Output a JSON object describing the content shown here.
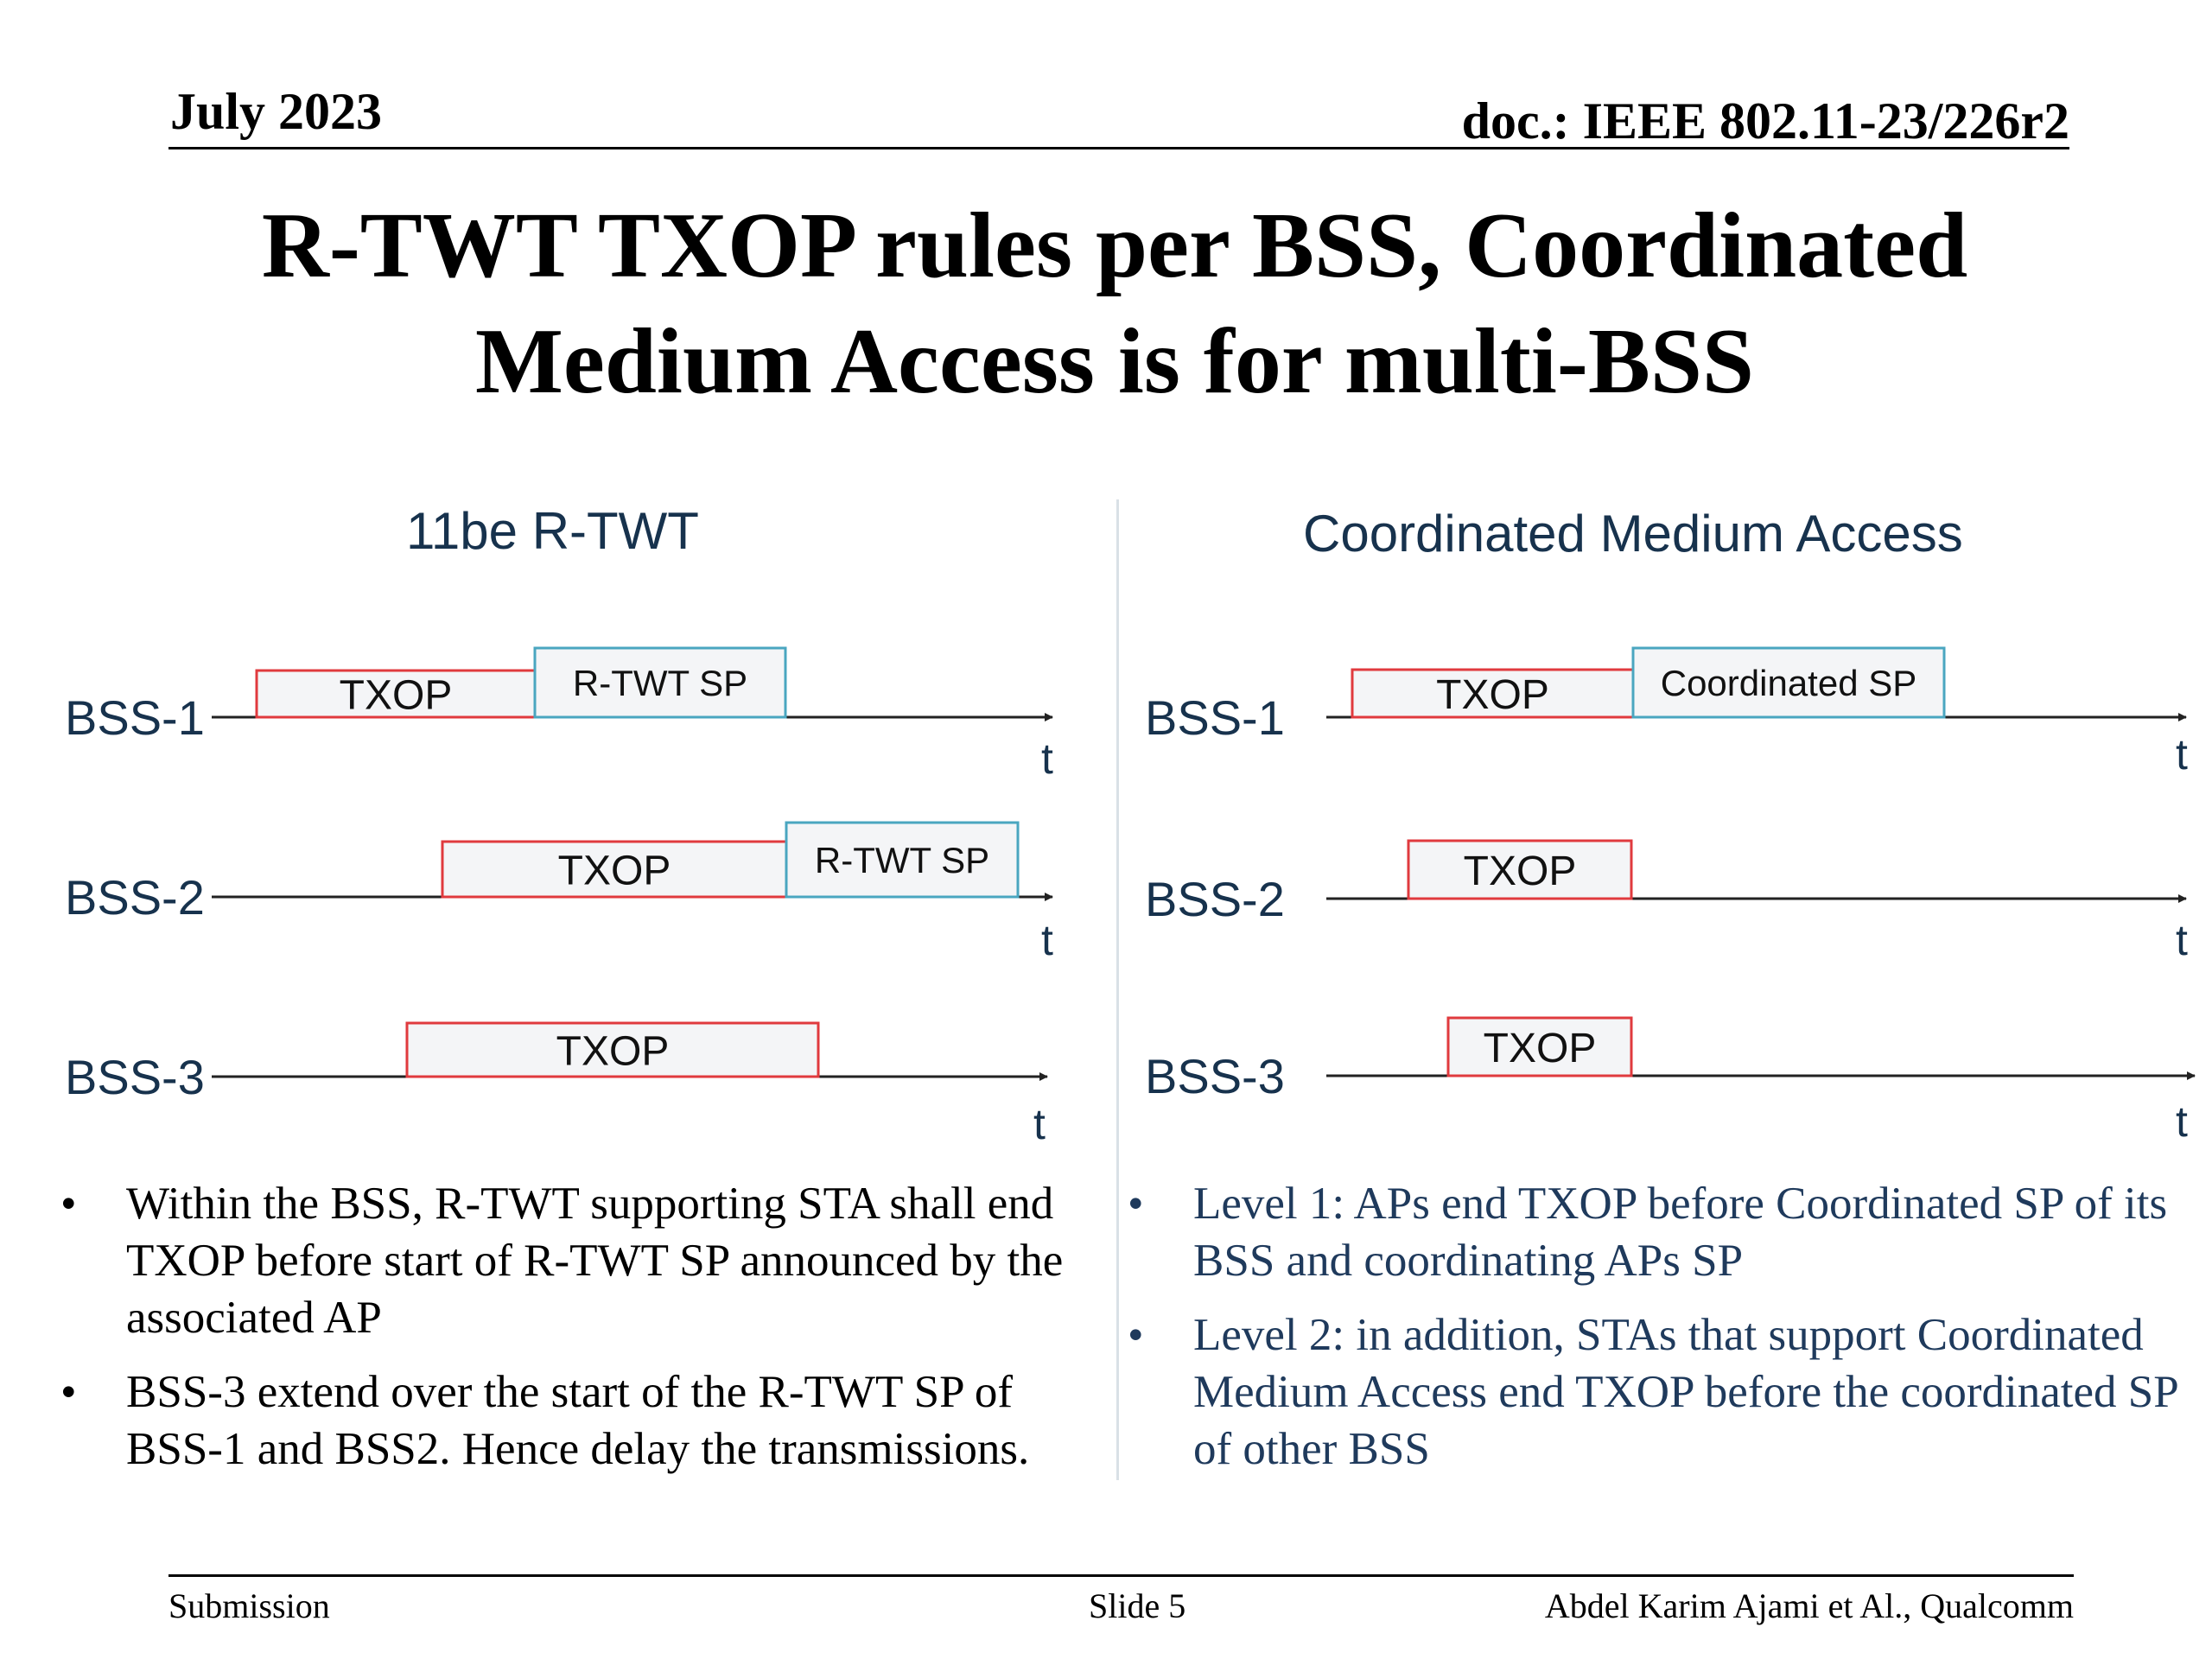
{
  "header": {
    "date": "July 2023",
    "doc": "doc.: IEEE 802.11-23/226r2"
  },
  "title": {
    "line1": "R-TWT TXOP rules per BSS, Coordinated",
    "line2": "Medium Access is for multi-BSS"
  },
  "left_panel": {
    "title": "11be R-TWT",
    "rows": [
      {
        "label": "BSS-1",
        "axis_label": "t",
        "blocks": [
          {
            "text": "TXOP",
            "kind": "txop"
          },
          {
            "text": "R-TWT SP",
            "kind": "sp"
          }
        ]
      },
      {
        "label": "BSS-2",
        "axis_label": "t",
        "blocks": [
          {
            "text": "TXOP",
            "kind": "txop"
          },
          {
            "text": "R-TWT SP",
            "kind": "sp"
          }
        ]
      },
      {
        "label": "BSS-3",
        "axis_label": "t",
        "blocks": [
          {
            "text": "TXOP",
            "kind": "txop"
          }
        ]
      }
    ],
    "bullets": [
      "Within the BSS, R-TWT supporting STA shall end TXOP before start of R-TWT SP announced by the associated AP",
      "BSS-3 extend over the start of the R-TWT SP of BSS-1 and BSS2. Hence delay the transmissions."
    ]
  },
  "right_panel": {
    "title": "Coordinated Medium Access",
    "rows": [
      {
        "label": "BSS-1",
        "axis_label": "t",
        "blocks": [
          {
            "text": "TXOP",
            "kind": "txop"
          },
          {
            "text": "Coordinated SP",
            "kind": "sp"
          }
        ]
      },
      {
        "label": "BSS-2",
        "axis_label": "t",
        "blocks": [
          {
            "text": "TXOP",
            "kind": "txop"
          }
        ]
      },
      {
        "label": "BSS-3",
        "axis_label": "t",
        "blocks": [
          {
            "text": "TXOP",
            "kind": "txop"
          }
        ]
      }
    ],
    "bullets": [
      "Level 1: APs end TXOP before Coordinated SP of its BSS and coordinating APs SP",
      "Level 2: in addition, STAs that support Coordinated Medium Access end TXOP before the coordinated SP of other BSS"
    ]
  },
  "bullet_glyph": "•",
  "footer": {
    "submission": "Submission",
    "slide": "Slide 5",
    "author": "Abdel Karim Ajami et Al., Qualcomm"
  },
  "colors": {
    "txop_border": "#e03a3e",
    "sp_border": "#4aa6c0",
    "block_fill": "#f4f5f7",
    "diagram_text": "#17324d",
    "axis": "#222222"
  }
}
